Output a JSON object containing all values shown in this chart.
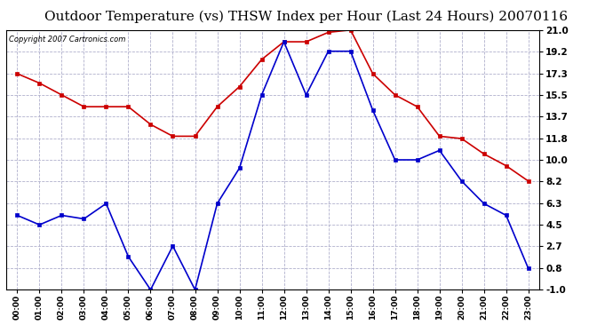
{
  "title": "Outdoor Temperature (vs) THSW Index per Hour (Last 24 Hours) 20070116",
  "copyright_text": "Copyright 2007 Cartronics.com",
  "hours": [
    "00:00",
    "01:00",
    "02:00",
    "03:00",
    "04:00",
    "05:00",
    "06:00",
    "07:00",
    "08:00",
    "09:00",
    "10:00",
    "11:00",
    "12:00",
    "13:00",
    "14:00",
    "15:00",
    "16:00",
    "17:00",
    "18:00",
    "19:00",
    "20:00",
    "21:00",
    "22:00",
    "23:00"
  ],
  "temp_red": [
    17.3,
    16.5,
    15.5,
    14.5,
    14.5,
    14.5,
    13.0,
    12.0,
    12.0,
    14.5,
    16.2,
    18.5,
    20.0,
    20.0,
    20.8,
    21.0,
    17.3,
    15.5,
    14.5,
    12.0,
    11.8,
    10.5,
    9.5,
    8.2
  ],
  "thsw_blue": [
    5.3,
    4.5,
    5.3,
    5.0,
    6.3,
    1.8,
    -1.0,
    2.7,
    -1.0,
    6.3,
    9.3,
    15.5,
    20.0,
    15.5,
    19.2,
    19.2,
    14.2,
    10.0,
    10.0,
    10.8,
    8.2,
    6.3,
    5.3,
    0.8
  ],
  "red_color": "#cc0000",
  "blue_color": "#0000cc",
  "bg_color": "#ffffff",
  "grid_color": "#b0b0cc",
  "title_fontsize": 11,
  "ylim": [
    -1.0,
    21.0
  ],
  "yticks": [
    -1.0,
    0.8,
    2.7,
    4.5,
    6.3,
    8.2,
    10.0,
    11.8,
    13.7,
    15.5,
    17.3,
    19.2,
    21.0
  ]
}
